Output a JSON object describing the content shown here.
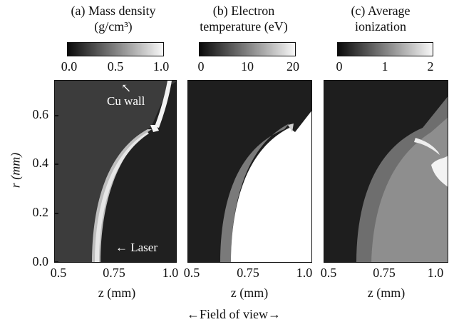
{
  "figure": {
    "panels": [
      {
        "id": "a",
        "title_line1": "(a) Mass density",
        "title_line2": "(g/cm³)",
        "colorbar_ticks": [
          "0.0",
          "0.5",
          "1.0"
        ],
        "colorbar_range": [
          0,
          1.0
        ],
        "xlabel": "z (mm)",
        "xticks": [
          "0.5",
          "0.75",
          "1.0"
        ]
      },
      {
        "id": "b",
        "title_line1": "(b) Electron",
        "title_line2": "temperature (eV)",
        "colorbar_ticks": [
          "0",
          "10",
          "20"
        ],
        "colorbar_range": [
          0,
          20
        ],
        "xlabel": "z (mm)",
        "xticks": [
          "0.5",
          "0.75",
          "1.0"
        ]
      },
      {
        "id": "c",
        "title_line1": "(c) Average",
        "title_line2": "ionization",
        "colorbar_ticks": [
          "0",
          "1",
          "2"
        ],
        "colorbar_range": [
          0,
          2
        ],
        "xlabel": "z (mm)",
        "xticks": [
          "0.5",
          "0.75",
          "1.0"
        ]
      }
    ],
    "y_axis": {
      "label": "r (mm)",
      "ticks": [
        "0.0",
        "0.2",
        "0.4",
        "0.6"
      ],
      "range": [
        0,
        0.75
      ]
    },
    "x_range": [
      0.5,
      1.0
    ],
    "annotations": {
      "cu_wall": "Cu wall",
      "laser": "Laser",
      "field_of_view": "Field of view"
    },
    "colors": {
      "background_dark": "#222222",
      "panel_a_plasma": "#3a3a3a",
      "panel_b_hot": "#ffffff",
      "panel_c_mid": "#8a8a8a"
    }
  }
}
